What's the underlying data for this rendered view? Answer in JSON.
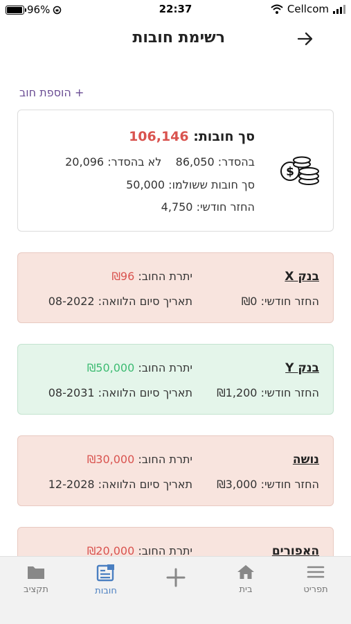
{
  "status_bar": {
    "battery": "96%",
    "time": "22:37",
    "carrier": "Cellcom"
  },
  "header": {
    "title": "רשימת חובות"
  },
  "add_debt_label": "+ הוספת חוב",
  "summary": {
    "title_label": "סך חובות:",
    "total": "106,146",
    "on_track_label": "בהסדר:",
    "on_track_value": "86,050",
    "off_track_label": "לא בהסדר:",
    "off_track_value": "20,096",
    "paid_label": "סך חובות ששולמו:",
    "paid_value": "50,000",
    "monthly_label": "החזר חודשי:",
    "monthly_value": "4,750"
  },
  "debts": [
    {
      "name": "בנק X",
      "balance_label": "יתרת החוב:",
      "balance": "₪96",
      "payment_label": "החזר חודשי:",
      "payment": "₪0",
      "end_label": "תאריך סיום הלוואה:",
      "end_date": "08-2022",
      "status": "red"
    },
    {
      "name": "בנק Y",
      "balance_label": "יתרת החוב:",
      "balance": "₪50,000",
      "payment_label": "החזר חודשי:",
      "payment": "₪1,200",
      "end_label": "תאריך סיום הלוואה:",
      "end_date": "08-2031",
      "status": "green"
    },
    {
      "name": "נושה",
      "balance_label": "יתרת החוב:",
      "balance": "₪30,000",
      "payment_label": "החזר חודשי:",
      "payment": "₪3,000",
      "end_label": "תאריך סיום הלוואה:",
      "end_date": "12-2028",
      "status": "red"
    },
    {
      "name": "האפורים",
      "balance_label": "יתרת החוב:",
      "balance": "₪20,000",
      "status": "red"
    }
  ],
  "nav": {
    "menu": "תפריט",
    "home": "בית",
    "debts": "חובות",
    "budget": "תקציב",
    "active_color": "#4a7fc1"
  },
  "icons": {
    "back": "arrow-right-icon",
    "coins": "coins-icon",
    "menu": "hamburger-icon",
    "home": "home-icon",
    "add": "plus-icon",
    "debts": "list-document-icon",
    "budget": "folder-icon"
  }
}
